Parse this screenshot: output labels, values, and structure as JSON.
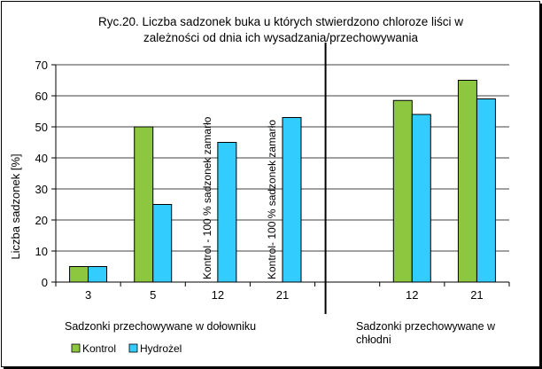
{
  "chart_data": {
    "type": "bar",
    "title_lines": [
      "Ryc.20. Liczba sadzonek buka u których stwierdzono chloroze liści w",
      "zależności od dnia ich wysadzania/przechowywania"
    ],
    "ylabel": "Liczba sadzonek [%]",
    "ylim": [
      0,
      70
    ],
    "yticks": [
      0,
      10,
      20,
      30,
      40,
      50,
      60,
      70
    ],
    "grid": true,
    "categories": [
      "3",
      "5",
      "12",
      "21",
      "",
      "12",
      "21"
    ],
    "series": [
      {
        "name": "Kontrol",
        "color": "#8dc63f",
        "values": [
          5,
          50,
          null,
          null,
          null,
          58.5,
          65
        ]
      },
      {
        "name": "Hydrożel",
        "color": "#33ccff",
        "values": [
          5,
          25,
          45,
          53,
          null,
          54,
          59
        ]
      }
    ],
    "annotations": [
      {
        "category_index": 2,
        "text": "Kontrol - 100 % sadzonek zamarło"
      },
      {
        "category_index": 3,
        "text": "Kontrol- 100 % sadzonek zamarło"
      }
    ],
    "divider_after_category": 4,
    "group_labels": [
      {
        "lines": [
          "Sadzonki przechowywane w dołowniku"
        ]
      },
      {
        "lines": [
          "Sadzonki przechowywane w",
          "chłodni"
        ]
      }
    ],
    "legend_position": "bottom-left"
  }
}
